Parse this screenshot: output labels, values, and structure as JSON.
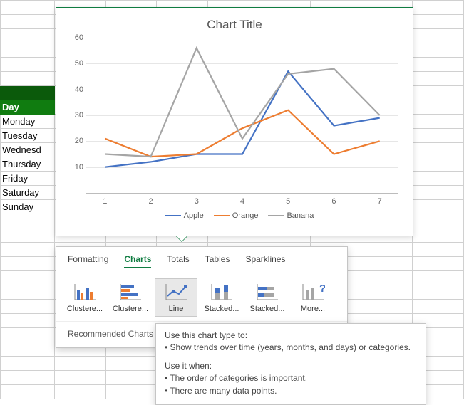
{
  "spreadsheet": {
    "header_label": "Day",
    "header_bg": "#107c10",
    "header_above_bg": "#0b5a0b",
    "days": [
      "Monday",
      "Tuesday",
      "Wednesd",
      "Thursday",
      "Friday",
      "Saturday",
      "Sunday"
    ]
  },
  "chart": {
    "title": "Chart Title",
    "title_fontsize": 17,
    "ylim": [
      0,
      60
    ],
    "ytick_step": 10,
    "x_categories": [
      1,
      2,
      3,
      4,
      5,
      6,
      7
    ],
    "grid_color": "#e6e6e6",
    "axis_label_color": "#666666",
    "series": [
      {
        "name": "Apple",
        "color": "#4472c4",
        "values": [
          10,
          12,
          15,
          15,
          47,
          26,
          29
        ]
      },
      {
        "name": "Orange",
        "color": "#ed7d31",
        "values": [
          21,
          14,
          15,
          25,
          32,
          15,
          20
        ]
      },
      {
        "name": "Banana",
        "color": "#a5a5a5",
        "values": [
          15,
          14,
          56,
          21,
          46,
          48,
          30
        ]
      }
    ],
    "line_width": 2.2
  },
  "quick_analysis": {
    "tabs": [
      {
        "label": "Formatting",
        "accel": "F"
      },
      {
        "label": "Charts",
        "accel": "C",
        "active": true
      },
      {
        "label": "Totals",
        "accel": "O"
      },
      {
        "label": "Tables",
        "accel": "T"
      },
      {
        "label": "Sparklines",
        "accel": "S"
      }
    ],
    "items": [
      {
        "label": "Clustere...",
        "type": "clustered-column"
      },
      {
        "label": "Clustere...",
        "type": "clustered-bar"
      },
      {
        "label": "Line",
        "type": "line",
        "selected": true
      },
      {
        "label": "Stacked...",
        "type": "stacked-column"
      },
      {
        "label": "Stacked...",
        "type": "stacked-bar"
      },
      {
        "label": "More...",
        "type": "more"
      }
    ],
    "footer": "Recommended Charts help yo"
  },
  "tooltip": {
    "intro": "Use this chart type to:",
    "intro_bullets": [
      "Show trends over time (years, months, and days) or categories."
    ],
    "when": "Use it when:",
    "when_bullets": [
      "The order of categories is important.",
      "There are many data points."
    ]
  }
}
